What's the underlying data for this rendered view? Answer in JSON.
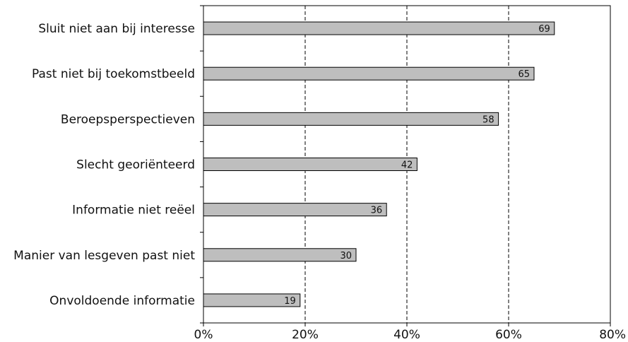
{
  "chart_data": {
    "type": "bar",
    "orientation": "horizontal",
    "categories": [
      "Sluit niet aan bij interesse",
      "Past niet bij toekomstbeeld",
      "Beroepsperspectieven",
      "Slecht georiënteerd",
      "Informatie niet reëel",
      "Manier van lesgeven past niet",
      "Onvoldoende informatie"
    ],
    "values": [
      69,
      65,
      58,
      42,
      36,
      30,
      19
    ],
    "value_labels": [
      "69",
      "65",
      "58",
      "42",
      "36",
      "30",
      "19"
    ],
    "xlim": [
      0,
      80
    ],
    "xticks": [
      0,
      20,
      40,
      60,
      80
    ],
    "xtick_labels": [
      "0%",
      "20%",
      "40%",
      "60%",
      "80%"
    ],
    "grid": "vertical dashed",
    "colors": {
      "bar_fill": "#bebebe",
      "bar_stroke": "#000000",
      "grid": "#000000"
    }
  }
}
